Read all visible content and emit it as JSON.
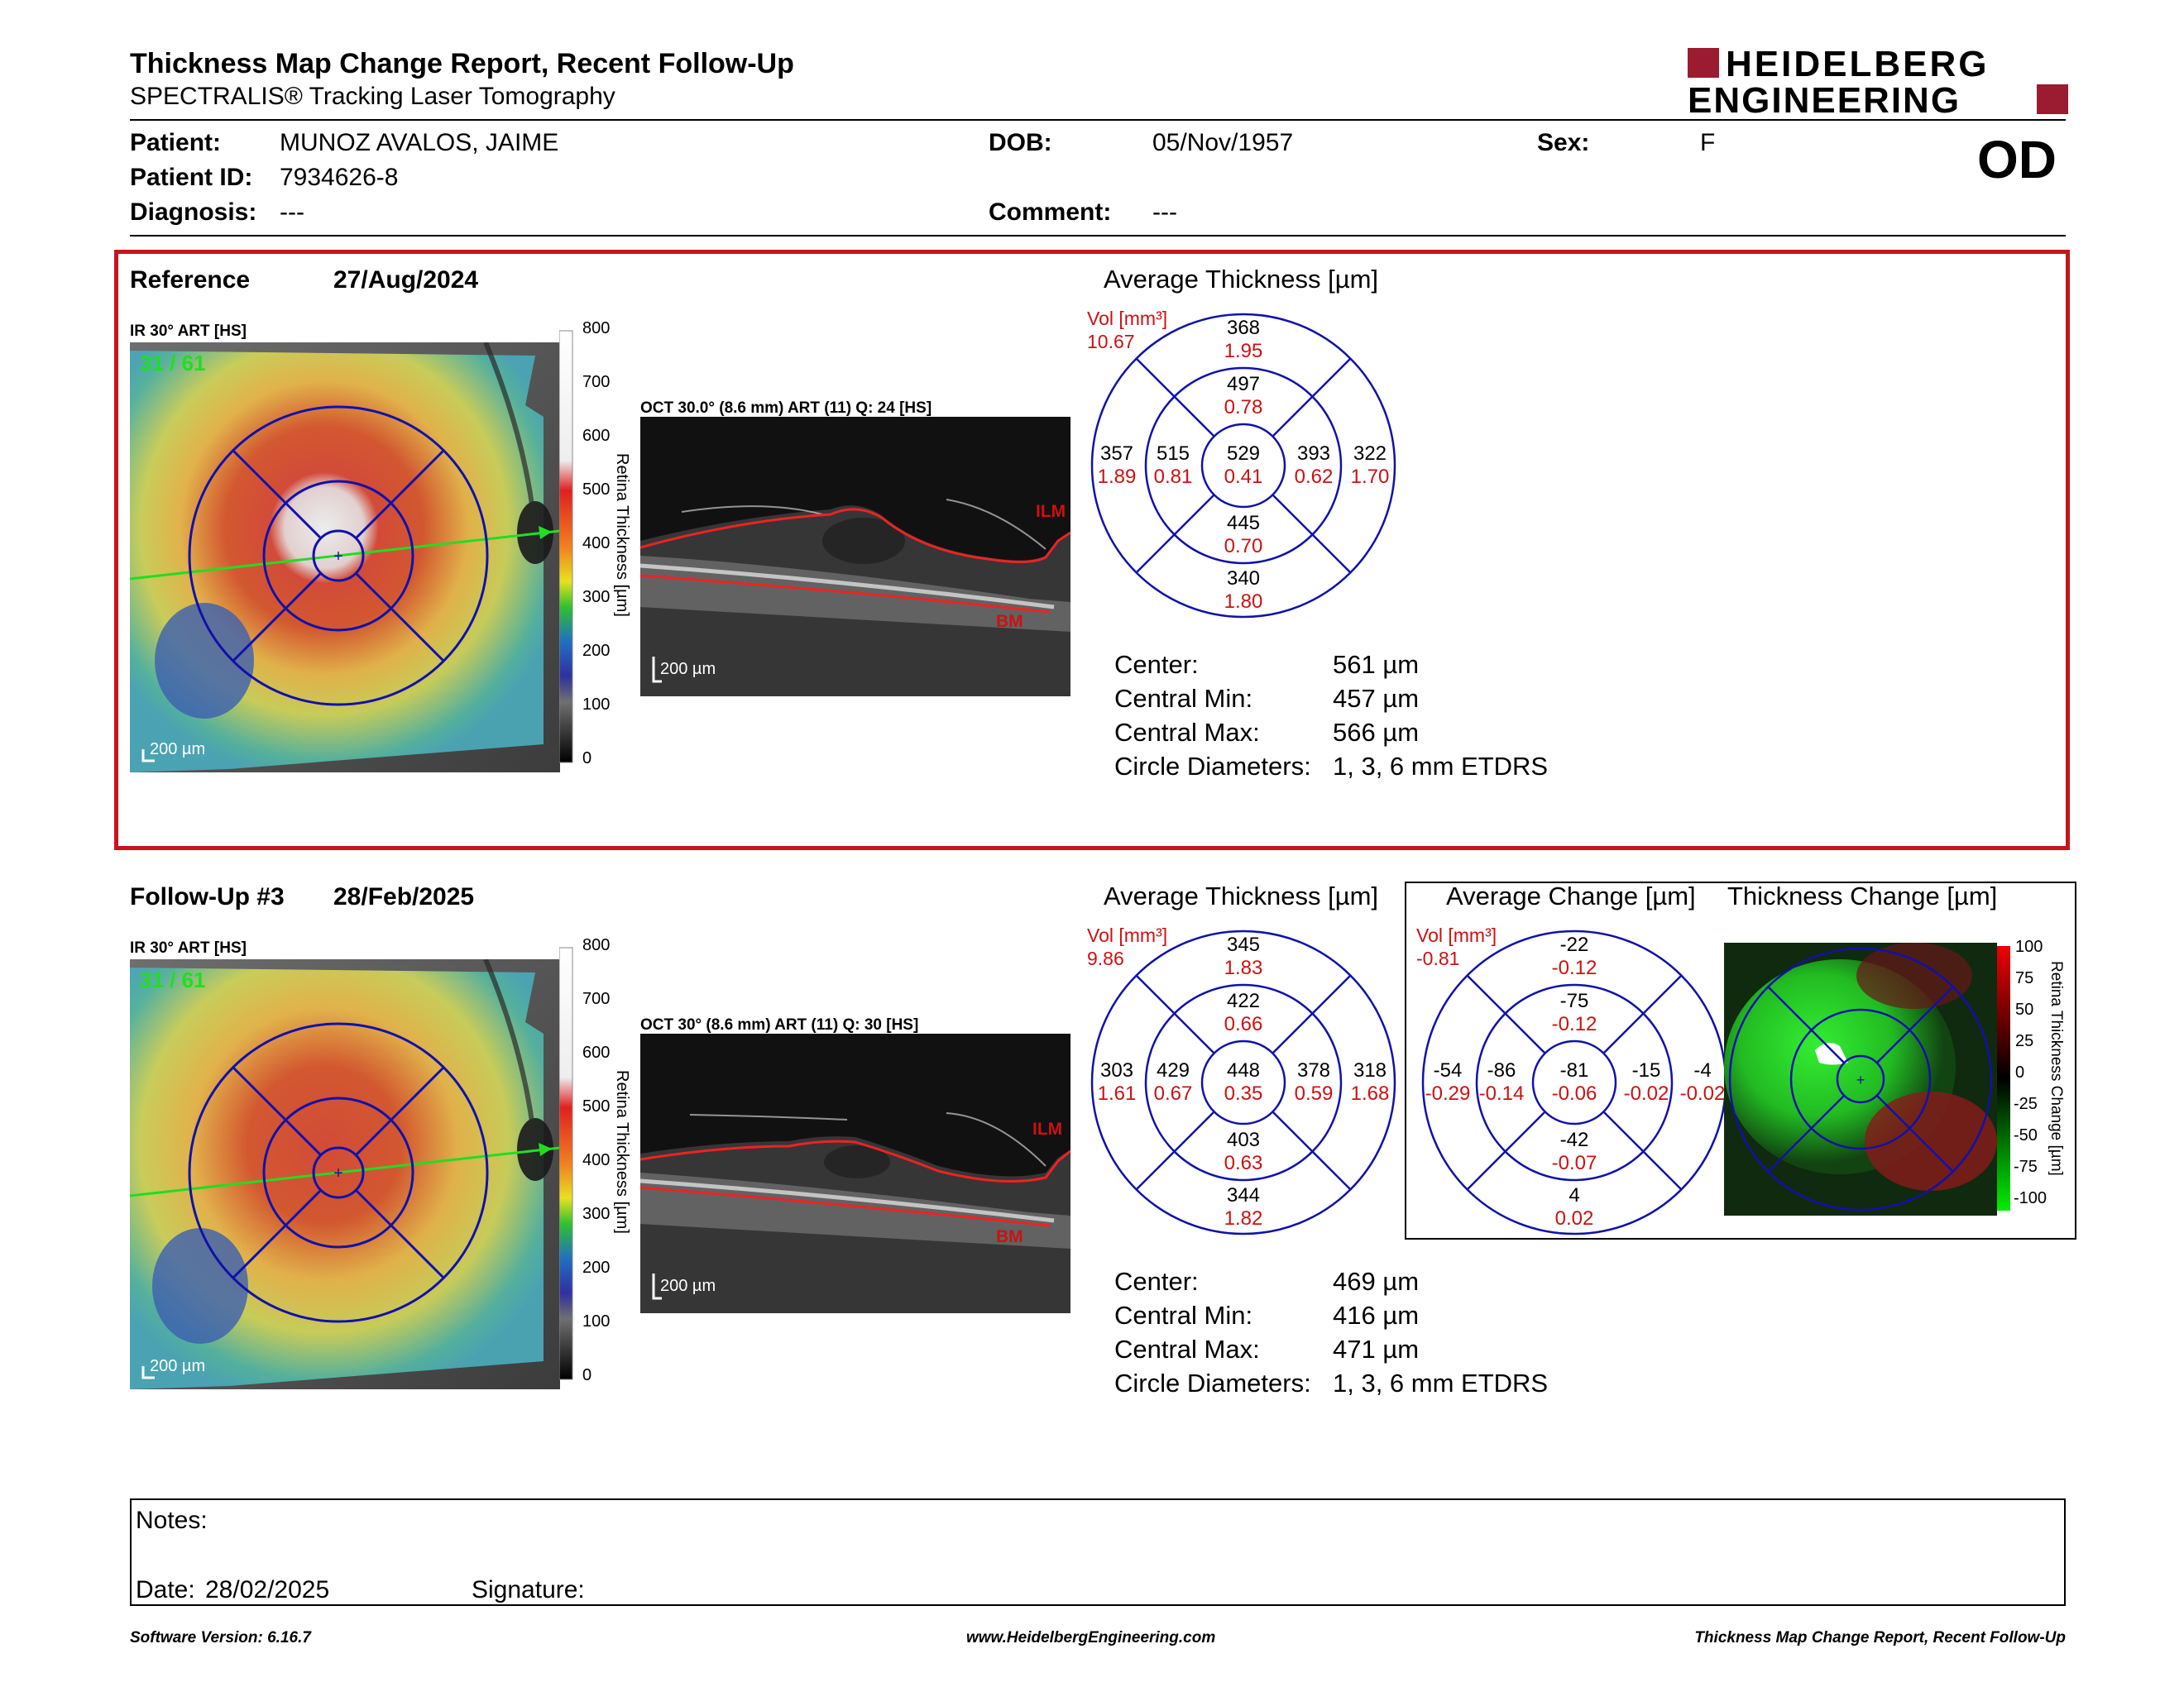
{
  "header": {
    "title": "Thickness Map Change Report, Recent Follow-Up",
    "subtitle": "SPECTRALIS® Tracking Laser Tomography",
    "logo_line1": "HEIDELBERG",
    "logo_line2": "ENGINEERING",
    "brand_color": "#9b1b30"
  },
  "patient": {
    "patient_label": "Patient:",
    "patient": "MUNOZ AVALOS, JAIME",
    "id_label": "Patient ID:",
    "id": "7934626-8",
    "diagnosis_label": "Diagnosis:",
    "diagnosis": "---",
    "dob_label": "DOB:",
    "dob": "05/Nov/1957",
    "comment_label": "Comment:",
    "comment": "---",
    "sex_label": "Sex:",
    "sex": "F",
    "eye": "OD"
  },
  "reference": {
    "label": "Reference",
    "date": "27/Aug/2024",
    "ir_label": "IR 30° ART [HS]",
    "ir_overlay": "31 / 61",
    "scale_bar": "200 µm",
    "oct_label": "OCT 30.0° (8.6 mm) ART (11) Q: 24 [HS]",
    "oct_scale": "200 µm",
    "ilm": "ILM",
    "bm": "BM",
    "colorbar_ticks": [
      "800",
      "700",
      "600",
      "500",
      "400",
      "300",
      "200",
      "100",
      "0"
    ],
    "colorbar_title": "Retina Thickness [µm]",
    "grid_title": "Average Thickness [µm]",
    "vol_label": "Vol [mm³]",
    "vol": "10.67",
    "sectors": {
      "outer_sup": [
        "368",
        "1.95"
      ],
      "inner_sup": [
        "497",
        "0.78"
      ],
      "outer_temp": [
        "357",
        "1.89"
      ],
      "inner_temp": [
        "515",
        "0.81"
      ],
      "center": [
        "529",
        "0.41"
      ],
      "inner_nas": [
        "393",
        "0.62"
      ],
      "outer_nas": [
        "322",
        "1.70"
      ],
      "inner_inf": [
        "445",
        "0.70"
      ],
      "outer_inf": [
        "340",
        "1.80"
      ]
    },
    "stats": [
      {
        "label": "Center:",
        "value": "561 µm"
      },
      {
        "label": "Central Min:",
        "value": "457 µm"
      },
      {
        "label": "Central Max:",
        "value": "566 µm"
      },
      {
        "label": "Circle Diameters:",
        "value": "1, 3, 6 mm ETDRS"
      }
    ]
  },
  "followup": {
    "label": "Follow-Up #3",
    "date": "28/Feb/2025",
    "ir_label": "IR 30° ART [HS]",
    "ir_overlay": "31 / 61",
    "scale_bar": "200 µm",
    "oct_label": "OCT 30° (8.6 mm) ART (11) Q: 30 [HS]",
    "oct_scale": "200 µm",
    "ilm": "ILM",
    "bm": "BM",
    "colorbar_ticks": [
      "800",
      "700",
      "600",
      "500",
      "400",
      "300",
      "200",
      "100",
      "0"
    ],
    "colorbar_title": "Retina Thickness [µm]",
    "grid_title": "Average Thickness [µm]",
    "vol_label": "Vol [mm³]",
    "vol": "9.86",
    "sectors": {
      "outer_sup": [
        "345",
        "1.83"
      ],
      "inner_sup": [
        "422",
        "0.66"
      ],
      "outer_temp": [
        "303",
        "1.61"
      ],
      "inner_temp": [
        "429",
        "0.67"
      ],
      "center": [
        "448",
        "0.35"
      ],
      "inner_nas": [
        "378",
        "0.59"
      ],
      "outer_nas": [
        "318",
        "1.68"
      ],
      "inner_inf": [
        "403",
        "0.63"
      ],
      "outer_inf": [
        "344",
        "1.82"
      ]
    },
    "stats": [
      {
        "label": "Center:",
        "value": "469 µm"
      },
      {
        "label": "Central Min:",
        "value": "416 µm"
      },
      {
        "label": "Central Max:",
        "value": "471 µm"
      },
      {
        "label": "Circle Diameters:",
        "value": "1, 3, 6 mm ETDRS"
      }
    ],
    "change": {
      "grid_title": "Average Change [µm]",
      "vol_label": "Vol [mm³]",
      "vol": "-0.81",
      "sectors": {
        "outer_sup": [
          "-22",
          "-0.12"
        ],
        "inner_sup": [
          "-75",
          "-0.12"
        ],
        "outer_temp": [
          "-54",
          "-0.29"
        ],
        "inner_temp": [
          "-86",
          "-0.14"
        ],
        "center": [
          "-81",
          "-0.06"
        ],
        "inner_nas": [
          "-15",
          "-0.02"
        ],
        "outer_nas": [
          "-4",
          "-0.02"
        ],
        "inner_inf": [
          "-42",
          "-0.07"
        ],
        "outer_inf": [
          "4",
          "0.02"
        ]
      },
      "map_title": "Thickness Change [µm]",
      "colorbar_ticks": [
        "100",
        "75",
        "50",
        "25",
        "0",
        "-25",
        "-50",
        "-75",
        "-100"
      ],
      "colorbar_title": "Retina Thickness Change [µm]"
    }
  },
  "notes": {
    "notes_label": "Notes:",
    "date_label": "Date:",
    "date": "28/02/2025",
    "signature_label": "Signature:"
  },
  "footer": {
    "version": "Software Version: 6.16.7",
    "url": "www.HeidelbergEngineering.com",
    "report": "Thickness Map Change Report, Recent Follow-Up"
  }
}
